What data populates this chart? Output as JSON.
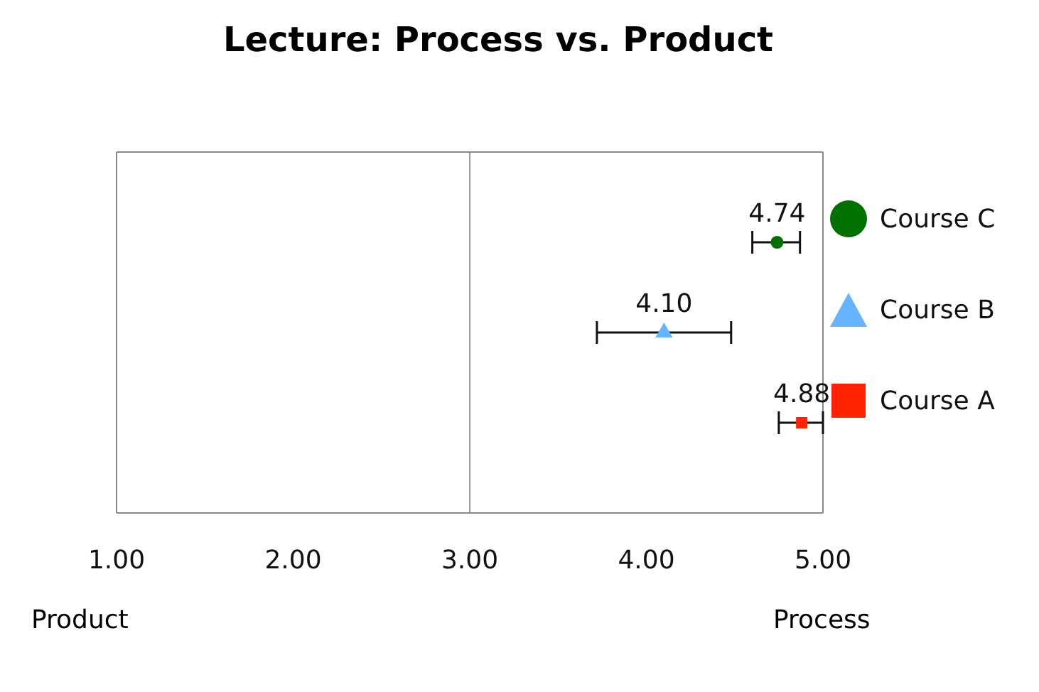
{
  "chart_data": {
    "type": "scatter",
    "title": "Lecture: Process vs. Product",
    "orientation": "horizontal",
    "categories": [
      null,
      null,
      null
    ],
    "series": [
      {
        "name": "Course C",
        "color": "#007000",
        "marker": "circle",
        "values": [
          4.74,
          null,
          null
        ],
        "errors": [
          [
            4.6,
            4.87
          ],
          null,
          null
        ],
        "value_labels": [
          "4.74",
          null,
          null
        ]
      },
      {
        "name": "Course B",
        "color": "#66b3ff",
        "marker": "triangle",
        "values": [
          null,
          4.1,
          null
        ],
        "errors": [
          null,
          [
            3.72,
            4.48
          ],
          null
        ],
        "value_labels": [
          null,
          "4.10",
          null
        ]
      },
      {
        "name": "Course A",
        "color": "#ff2200",
        "marker": "square",
        "values": [
          null,
          null,
          4.88
        ],
        "errors": [
          null,
          null,
          [
            4.75,
            5.0
          ]
        ],
        "value_labels": [
          null,
          null,
          "4.88"
        ]
      }
    ],
    "xlim": [
      1,
      5
    ],
    "xticks": [
      {
        "value": 1,
        "label": "1.00"
      },
      {
        "value": 2,
        "label": "2.00"
      },
      {
        "value": 3,
        "label": "3.00"
      },
      {
        "value": 4,
        "label": "4.00"
      },
      {
        "value": 5,
        "label": "5.00"
      }
    ],
    "ref_lines": [
      {
        "axis": "x",
        "value": 3,
        "color": "#999999"
      }
    ],
    "annotations": [
      "Product",
      "Process"
    ],
    "legend": "right",
    "tick_labels": "x"
  }
}
